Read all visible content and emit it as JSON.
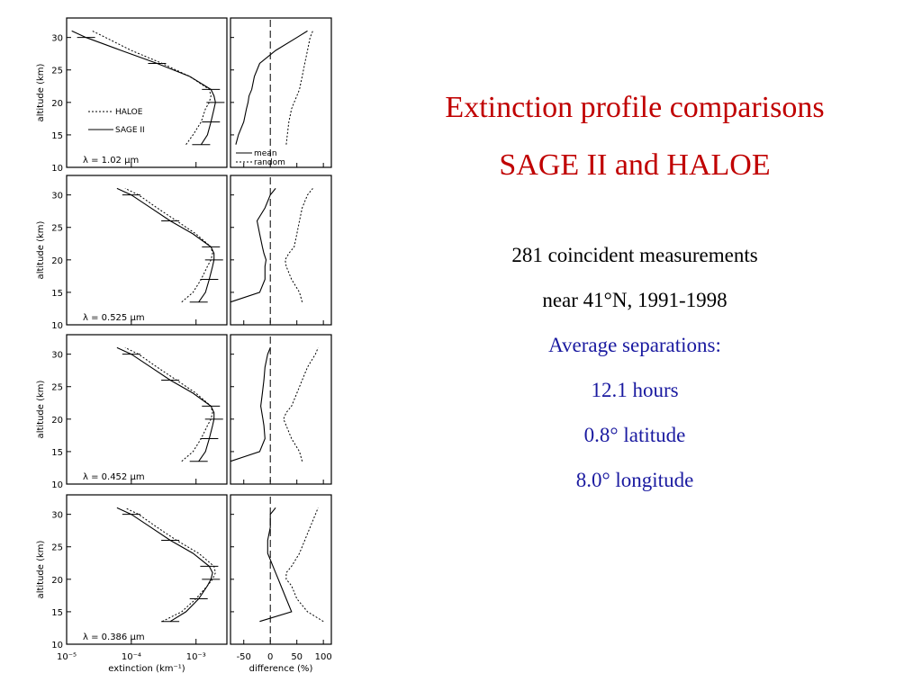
{
  "slide": {
    "title_line1": "Extinction profile comparisons",
    "title_line2": "SAGE II and HALOE",
    "info_black": [
      "281 coincident measurements",
      "near 41°N, 1991-1998"
    ],
    "info_blue": [
      "Average separations:",
      "12.1 hours",
      "0.8°  latitude",
      "8.0°  longitude"
    ],
    "title_color": "#c00000",
    "blue_color": "#1a1aa0"
  },
  "chart_data": {
    "type": "line",
    "left_xlabel": "extinction (km⁻¹)",
    "right_xlabel": "difference (%)",
    "ylabel": "altitude (km)",
    "ylim": [
      10,
      33
    ],
    "yticks": [
      10,
      15,
      20,
      25,
      30
    ],
    "left_xscale": "log",
    "left_xlim": [
      1e-05,
      0.003
    ],
    "left_xticks": [
      {
        "value": 1e-05,
        "label": "10⁻⁵"
      },
      {
        "value": 0.0001,
        "label": "10⁻⁴"
      },
      {
        "value": 0.001,
        "label": "10⁻³"
      }
    ],
    "right_xlim": [
      -75,
      115
    ],
    "right_xticks": [
      -50,
      0,
      50,
      100
    ],
    "legend_left": [
      "HALOE",
      "SAGE II"
    ],
    "legend_right": [
      "mean",
      "random"
    ],
    "panels": [
      {
        "wavelength_label": "λ = 1.02 μm",
        "alt": [
          13.5,
          15,
          17,
          19,
          20,
          21,
          22,
          24,
          26,
          28,
          30,
          31
        ],
        "sage": [
          0.0012,
          0.0015,
          0.0017,
          0.0019,
          0.002,
          0.0019,
          0.0017,
          0.0008,
          0.00025,
          7e-05,
          2e-05,
          1.2e-05
        ],
        "haloe": [
          0.0007,
          0.0009,
          0.0012,
          0.0014,
          0.0016,
          0.0017,
          0.0016,
          0.0008,
          0.0003,
          0.0001,
          4e-05,
          2.5e-05
        ],
        "mean": [
          -65,
          -60,
          -50,
          -45,
          -42,
          -40,
          -35,
          -30,
          -20,
          10,
          50,
          70
        ],
        "random": [
          30,
          32,
          35,
          40,
          45,
          50,
          55,
          60,
          65,
          70,
          75,
          80
        ]
      },
      {
        "wavelength_label": "λ = 0.525 μm",
        "alt": [
          13.5,
          15,
          17,
          19,
          20,
          21,
          22,
          24,
          26,
          28,
          30,
          31
        ],
        "sage": [
          0.0011,
          0.0014,
          0.0016,
          0.0018,
          0.0019,
          0.0019,
          0.0017,
          0.0009,
          0.0004,
          0.0002,
          0.0001,
          6e-05
        ],
        "haloe": [
          0.0006,
          0.0009,
          0.0012,
          0.0015,
          0.0017,
          0.0018,
          0.0017,
          0.001,
          0.0005,
          0.00025,
          0.00013,
          8e-05
        ],
        "mean": [
          -75,
          -20,
          -10,
          -10,
          -8,
          -12,
          -15,
          -20,
          -25,
          -10,
          0,
          10
        ],
        "random": [
          60,
          55,
          40,
          30,
          28,
          35,
          45,
          50,
          55,
          60,
          70,
          80
        ]
      },
      {
        "wavelength_label": "λ = 0.452 μm",
        "alt": [
          13.5,
          15,
          17,
          19,
          20,
          21,
          22,
          24,
          26,
          28,
          30,
          31
        ],
        "sage": [
          0.0011,
          0.0014,
          0.0016,
          0.0018,
          0.0019,
          0.0019,
          0.0017,
          0.0009,
          0.0004,
          0.0002,
          0.0001,
          6e-05
        ],
        "haloe": [
          0.0006,
          0.0009,
          0.0012,
          0.0015,
          0.0017,
          0.0018,
          0.0017,
          0.001,
          0.0005,
          0.00025,
          0.00013,
          8e-05
        ],
        "mean": [
          -75,
          -20,
          -10,
          -12,
          -14,
          -16,
          -18,
          -15,
          -12,
          -10,
          -5,
          0
        ],
        "random": [
          60,
          55,
          40,
          30,
          25,
          30,
          40,
          50,
          60,
          70,
          85,
          90
        ]
      },
      {
        "wavelength_label": "λ = 0.386 μm",
        "alt": [
          13.5,
          15,
          17,
          19,
          20,
          21,
          22,
          24,
          26,
          28,
          30,
          31
        ],
        "sage": [
          0.0004,
          0.0007,
          0.0011,
          0.0015,
          0.0017,
          0.0018,
          0.0016,
          0.0009,
          0.0004,
          0.0002,
          0.0001,
          6e-05
        ],
        "haloe": [
          0.0003,
          0.0006,
          0.001,
          0.0015,
          0.0018,
          0.002,
          0.0019,
          0.0011,
          0.0005,
          0.00025,
          0.00013,
          8e-05
        ],
        "mean": [
          -20,
          40,
          30,
          20,
          15,
          10,
          5,
          -5,
          -5,
          0,
          0,
          10
        ],
        "random": [
          100,
          70,
          50,
          40,
          30,
          30,
          40,
          55,
          65,
          75,
          85,
          90
        ]
      }
    ]
  }
}
